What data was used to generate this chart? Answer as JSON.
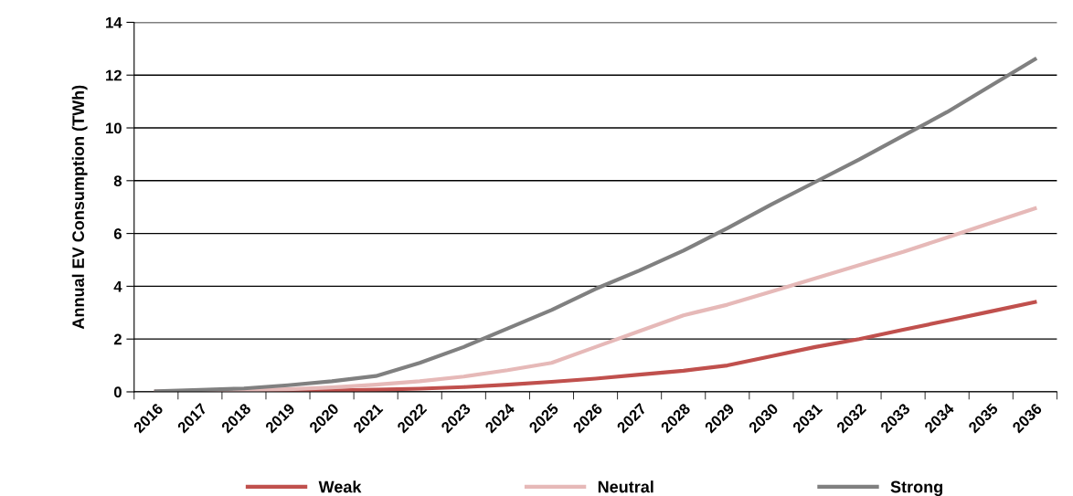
{
  "chart_data": {
    "type": "line",
    "ylabel": "Annual EV Consumption (TWh)",
    "categories": [
      "2016",
      "2017",
      "2018",
      "2019",
      "2020",
      "2021",
      "2022",
      "2023",
      "2024",
      "2025",
      "2026",
      "2027",
      "2028",
      "2029",
      "2030",
      "2031",
      "2032",
      "2033",
      "2034",
      "2035",
      "2036"
    ],
    "series": [
      {
        "name": "Weak",
        "color": "#c0504d",
        "values": [
          0.0,
          0.01,
          0.02,
          0.03,
          0.05,
          0.08,
          0.12,
          0.18,
          0.27,
          0.38,
          0.5,
          0.65,
          0.8,
          1.0,
          1.35,
          1.7,
          2.0,
          2.35,
          2.7,
          3.05,
          3.4
        ]
      },
      {
        "name": "Neutral",
        "color": "#e6b9b8",
        "values": [
          0.01,
          0.03,
          0.06,
          0.1,
          0.17,
          0.27,
          0.4,
          0.58,
          0.82,
          1.1,
          1.7,
          2.3,
          2.9,
          3.3,
          3.8,
          4.3,
          4.8,
          5.3,
          5.85,
          6.4,
          6.95
        ]
      },
      {
        "name": "Strong",
        "color": "#808080",
        "values": [
          0.02,
          0.07,
          0.13,
          0.25,
          0.4,
          0.6,
          1.1,
          1.7,
          2.4,
          3.1,
          3.9,
          4.6,
          5.35,
          6.2,
          7.1,
          7.95,
          8.8,
          9.7,
          10.6,
          11.6,
          12.6
        ]
      }
    ],
    "ylim": [
      0,
      14
    ],
    "yticks": [
      0,
      2,
      4,
      6,
      8,
      10,
      12,
      14
    ],
    "grid": "y",
    "legend": "bottom",
    "marker": "none",
    "line_style": "solid"
  }
}
